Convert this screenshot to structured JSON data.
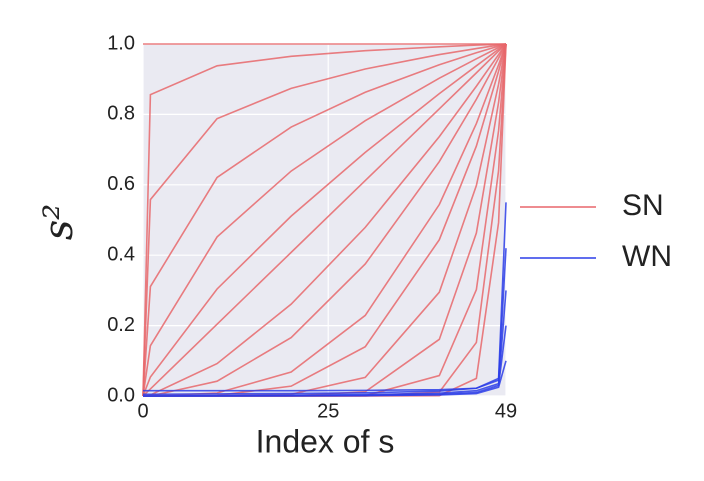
{
  "chart_data": {
    "type": "line",
    "xlabel": "Index of s",
    "ylabel": "s²",
    "x": [
      0,
      1,
      10,
      20,
      30,
      40,
      45,
      48,
      49
    ],
    "xlim": [
      0,
      49
    ],
    "xticks": [
      0,
      25,
      49
    ],
    "ylim": [
      0,
      1
    ],
    "yticks": [
      {
        "value": 0,
        "label": "0.0"
      },
      0.2,
      0.4,
      0.6,
      0.8,
      {
        "value": 1,
        "label": "1.0"
      }
    ],
    "grid": true,
    "legend": "right",
    "series": [
      {
        "name": "SN",
        "color": "#e8676b",
        "lines": [
          [
            1,
            1,
            1,
            1,
            1,
            1,
            1,
            1,
            1
          ],
          [
            0,
            0.856,
            0.938,
            0.965,
            0.981,
            0.992,
            0.997,
            0.999,
            1
          ],
          [
            0,
            0.558,
            0.788,
            0.874,
            0.929,
            0.97,
            0.987,
            0.997,
            1
          ],
          [
            0,
            0.311,
            0.621,
            0.764,
            0.863,
            0.941,
            0.975,
            0.994,
            1
          ],
          [
            0,
            0.143,
            0.452,
            0.639,
            0.782,
            0.903,
            0.958,
            0.99,
            1
          ],
          [
            0,
            0.054,
            0.304,
            0.511,
            0.692,
            0.859,
            0.938,
            0.985,
            1
          ],
          [
            0,
            0.02,
            0.204,
            0.408,
            0.612,
            0.816,
            0.918,
            0.98,
            1
          ],
          [
            0,
            0.003,
            0.092,
            0.261,
            0.479,
            0.737,
            0.88,
            0.97,
            1
          ],
          [
            0,
            0,
            0.042,
            0.166,
            0.375,
            0.666,
            0.843,
            0.96,
            1
          ],
          [
            0,
            0,
            0.0085,
            0.068,
            0.229,
            0.544,
            0.774,
            0.941,
            1
          ],
          [
            0,
            0,
            0.0017,
            0.028,
            0.14,
            0.444,
            0.71,
            0.923,
            1
          ],
          [
            0,
            0,
            0.0001,
            0.005,
            0.053,
            0.295,
            0.598,
            0.886,
            1
          ],
          [
            0,
            0,
            0,
            0.0003,
            0.012,
            0.161,
            0.463,
            0.834,
            1
          ],
          [
            0,
            0,
            0,
            0,
            0.001,
            0.058,
            0.302,
            0.754,
            1
          ],
          [
            0,
            0,
            0,
            0,
            0,
            0.011,
            0.152,
            0.641,
            1
          ],
          [
            0,
            0,
            0,
            0,
            0,
            0.001,
            0.05,
            0.493,
            1
          ]
        ]
      },
      {
        "name": "WN",
        "color": "#2b3de8",
        "lines": [
          [
            0.015,
            0.015,
            0.015,
            0.015,
            0.016,
            0.018,
            0.022,
            0.05,
            0.55
          ],
          [
            0.005,
            0.005,
            0.006,
            0.007,
            0.009,
            0.014,
            0.022,
            0.045,
            0.42
          ],
          [
            0,
            0,
            0.001,
            0.002,
            0.004,
            0.008,
            0.015,
            0.035,
            0.3
          ],
          [
            0,
            0,
            0,
            0.001,
            0.002,
            0.005,
            0.01,
            0.03,
            0.2
          ],
          [
            0,
            0,
            0,
            0,
            0.001,
            0.003,
            0.007,
            0.025,
            0.1
          ]
        ]
      }
    ]
  }
}
